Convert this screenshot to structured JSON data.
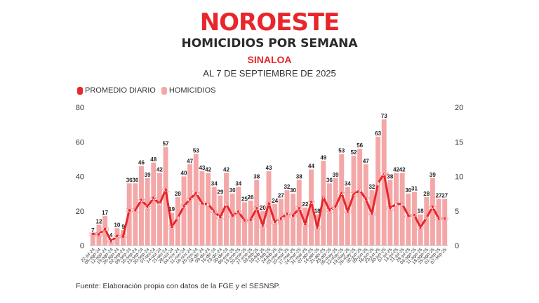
{
  "brand": "NOROESTE",
  "colors": {
    "brand_red": "#e8262b",
    "bar_pink": "#f4a7a7",
    "line_red": "#e8262b",
    "label_dark": "#222222"
  },
  "header": {
    "title": "HOMICIDIOS POR SEMANA",
    "subtitle": "SINALOA",
    "date": "AL 7 DE SEPTIEMBRE DE 2025"
  },
  "legend": {
    "line_label": "PROMEDIO DIARIO",
    "bar_label": "HOMICIDIOS"
  },
  "footer": {
    "source": "Fuente: Elaboración propia con datos de la FGE y el SESNSP."
  },
  "chart_data": {
    "type": "bar+line",
    "title": "HOMICIDIOS POR SEMANA",
    "xlabel": "",
    "ylabel": "",
    "left_axis": {
      "ylim": [
        0,
        80
      ],
      "ticks": [
        0,
        20,
        40,
        60,
        80
      ]
    },
    "right_axis": {
      "ylim": [
        0,
        20
      ],
      "ticks": [
        0,
        5,
        10,
        15,
        20
      ]
    },
    "grid": false,
    "legend_position": "top-left",
    "categories": [
      "22-jul-24",
      "05-ago-24",
      "12-ago-24",
      "19-ago-24",
      "26-ago-24",
      "02-sep-24",
      "09-sep-24",
      "16-sep-24",
      "23-sep-24",
      "30-sep-24",
      "07-oct-24",
      "14-oct-24",
      "21-oct-24",
      "28-oct-24",
      "04-nov-24",
      "11-nov-24",
      "18-nov-24",
      "25-nov-24",
      "02-dic-24",
      "09-dic-24",
      "16-dic-24",
      "23-dic-24",
      "30-dic-24",
      "06-ene-25",
      "13-ene-25",
      "20-ene-25",
      "27-ene-25",
      "03-feb-25",
      "10-feb-25",
      "17-feb-25",
      "24-feb-25",
      "03-mar-25",
      "10-mar-25",
      "17-mar-25",
      "24-mar-25",
      "31-mar-25",
      "07-abr-25",
      "14-abr-25",
      "21-abr-25",
      "28-abr-25",
      "05-may-25",
      "12-may-25",
      "19-may-25",
      "26-may-25",
      "02-jun-25",
      "09-jun-25",
      "16-jun-25",
      "23-jun-25",
      "30-jun-25",
      "07-jul-25",
      "14-jul-25",
      "21-jul-25",
      "28-jul-25",
      "04-ago-25",
      "11-ago-25",
      "18-ago-25",
      "25-ago-25",
      "01-sep-25",
      "07-sep-25"
    ],
    "series": [
      {
        "name": "HOMICIDIOS",
        "type": "bar",
        "axis": "left",
        "values": [
          7,
          12,
          17,
          4,
          10,
          9,
          36,
          36,
          46,
          39,
          48,
          42,
          57,
          19,
          28,
          40,
          47,
          53,
          43,
          42,
          34,
          29,
          42,
          30,
          34,
          25,
          26,
          38,
          20,
          43,
          24,
          27,
          32,
          30,
          38,
          22,
          44,
          18,
          49,
          36,
          39,
          53,
          34,
          52,
          56,
          47,
          32,
          63,
          73,
          38,
          42,
          42,
          30,
          31,
          18,
          28,
          39,
          27,
          27
        ]
      },
      {
        "name": "PROMEDIO DIARIO",
        "type": "line",
        "axis": "right",
        "values": [
          1.7,
          1.6,
          2.4,
          0.6,
          1.4,
          1.3,
          5.1,
          5.1,
          6.6,
          5.6,
          6.9,
          6,
          8.1,
          2.7,
          4,
          5.7,
          6.7,
          7.6,
          6.1,
          6,
          4.9,
          4.1,
          6,
          4.3,
          4.9,
          3.6,
          3.7,
          5.4,
          2.9,
          6.1,
          3.4,
          3.9,
          4.6,
          4.3,
          5.4,
          3.1,
          6.3,
          2.6,
          7,
          5.1,
          5.6,
          7.6,
          4.9,
          7.4,
          8,
          6.7,
          4.6,
          9,
          10.4,
          5.4,
          6,
          6,
          4.3,
          4.4,
          2.6,
          4,
          5.6,
          3.9,
          3.9
        ]
      }
    ]
  }
}
